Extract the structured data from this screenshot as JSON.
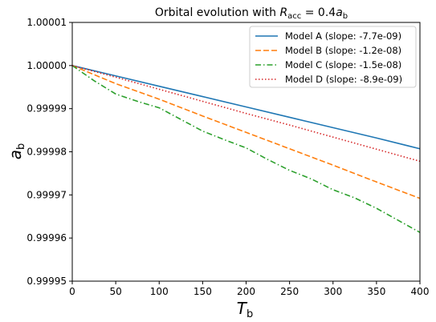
{
  "chart_data": {
    "type": "line",
    "title": {
      "prefix": "Orbital evolution with ",
      "r_main": "R",
      "r_sub": "acc",
      "middle": " = 0.4",
      "a_main": "a",
      "a_sub": "b"
    },
    "xlabel": {
      "main": "T",
      "sub": "b"
    },
    "ylabel": {
      "main": "a",
      "sub": "b"
    },
    "xlim": [
      0,
      400
    ],
    "ylim": [
      0.99995,
      1.00001
    ],
    "xticks": [
      0,
      50,
      100,
      150,
      200,
      250,
      300,
      350,
      400
    ],
    "xtick_labels": [
      "0",
      "50",
      "100",
      "150",
      "200",
      "250",
      "300",
      "350",
      "400"
    ],
    "yticks": [
      0.99995,
      0.99996,
      0.99997,
      0.99998,
      0.99999,
      1.0,
      1.00001
    ],
    "ytick_labels": [
      "0.99995",
      "0.99996",
      "0.99997",
      "0.99998",
      "0.99999",
      "1.00000",
      "1.00001"
    ],
    "grid": false,
    "legend_position": "top-right",
    "series": [
      {
        "name": "Model A (slope: -7.7e-09)",
        "color": "#1f77b4",
        "style": "solid",
        "x": [
          0,
          50,
          100,
          150,
          200,
          250,
          300,
          350,
          400
        ],
        "y": [
          1.0,
          0.9999976,
          0.9999952,
          0.9999928,
          0.9999904,
          0.999988,
          0.9999856,
          0.9999832,
          0.9999807
        ]
      },
      {
        "name": "Model B (slope: -1.2e-08)",
        "color": "#ff7f0e",
        "style": "dashed",
        "x": [
          0,
          50,
          100,
          150,
          200,
          250,
          300,
          350,
          400
        ],
        "y": [
          1.0,
          0.9999958,
          0.9999922,
          0.9999883,
          0.9999845,
          0.9999807,
          0.9999769,
          0.999973,
          0.9999692
        ]
      },
      {
        "name": "Model C (slope: -1.5e-08)",
        "color": "#2ca02c",
        "style": "dashdot",
        "x": [
          0,
          25,
          50,
          75,
          100,
          125,
          150,
          175,
          200,
          225,
          250,
          275,
          300,
          325,
          350,
          375,
          400
        ],
        "y": [
          1.0,
          0.9999965,
          0.9999934,
          0.9999917,
          0.9999902,
          0.9999875,
          0.9999848,
          0.9999828,
          0.9999809,
          0.9999782,
          0.9999757,
          0.9999737,
          0.9999712,
          0.9999693,
          0.9999669,
          0.9999641,
          0.9999613
        ]
      },
      {
        "name": "Model D (slope: -8.9e-09)",
        "color": "#d62728",
        "style": "dotted",
        "x": [
          0,
          50,
          100,
          150,
          200,
          250,
          300,
          350,
          400
        ],
        "y": [
          1.0,
          0.9999973,
          0.9999945,
          0.9999917,
          0.9999889,
          0.9999862,
          0.9999834,
          0.9999806,
          0.9999778
        ]
      }
    ]
  }
}
